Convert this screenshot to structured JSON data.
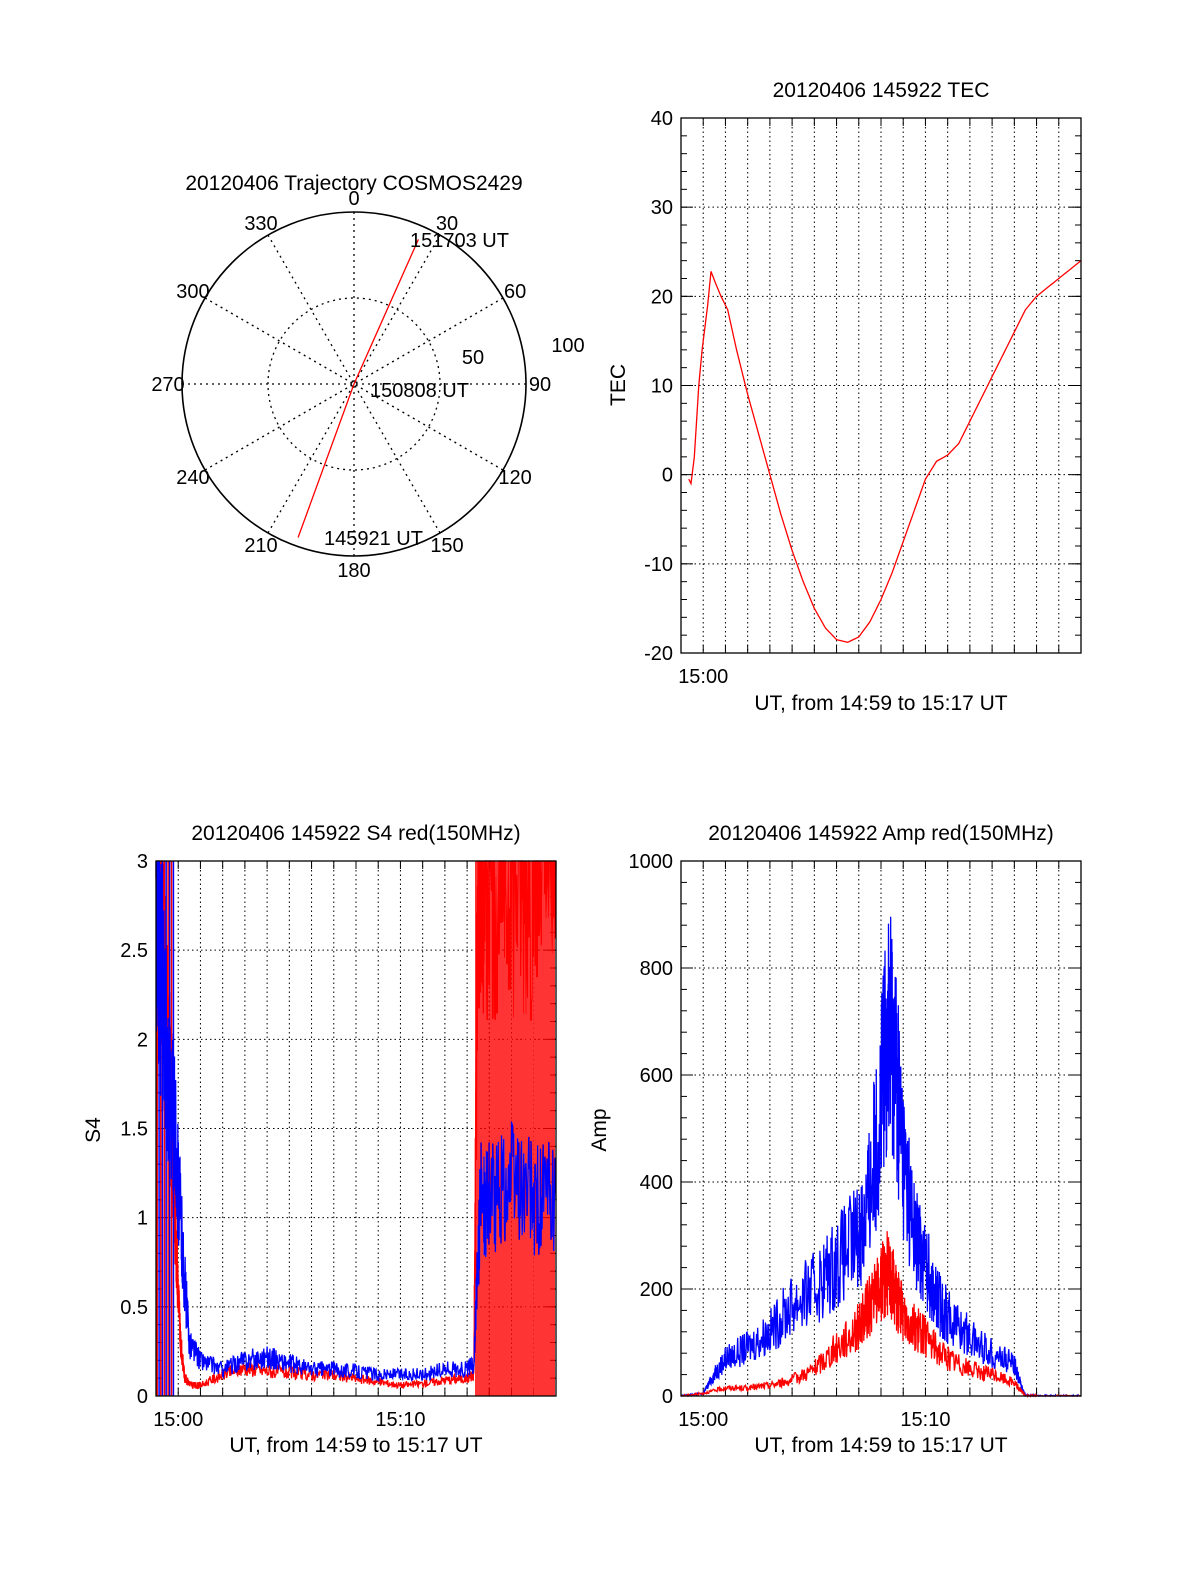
{
  "chart_data": [
    {
      "type": "polar",
      "title": "20120406 Trajectory COSMOS2429",
      "angle_labels": [
        "0",
        "30",
        "60",
        "90",
        "120",
        "150",
        "180",
        "210",
        "240",
        "270",
        "300",
        "330"
      ],
      "radius_labels": [
        "50",
        "100"
      ],
      "rmax": 100,
      "trajectory_points": [
        {
          "az": 200,
          "r": 95,
          "label": "145921 UT"
        },
        {
          "az": 90,
          "r": 0,
          "label": "150808 UT"
        },
        {
          "az": 24,
          "r": 92,
          "label": "151703 UT"
        }
      ],
      "series_color": "#ff0000"
    },
    {
      "type": "line",
      "title": "20120406 145922 TEC",
      "xlabel": "UT, from 14:59 to 15:17 UT",
      "ylabel": "TEC",
      "xlim": [
        0,
        18
      ],
      "ylim": [
        -20,
        40
      ],
      "yticks": [
        "-20",
        "-10",
        "0",
        "10",
        "20",
        "30",
        "40"
      ],
      "xticks": [
        {
          "x": 1,
          "label": "15:00"
        }
      ],
      "grid": true,
      "series": [
        {
          "color": "#ff0000",
          "x": [
            0.35,
            0.45,
            0.6,
            0.8,
            0.95,
            1.2,
            1.35,
            1.55,
            1.8,
            2.1,
            2.5,
            3.0,
            3.5,
            4.0,
            4.5,
            5.0,
            5.5,
            6.0,
            6.5,
            7.0,
            7.5,
            8.0,
            8.5,
            9.0,
            9.5,
            10.0,
            10.5,
            11.0,
            11.5,
            12.0,
            12.5,
            13.0,
            13.5,
            14.0,
            14.5,
            15.0,
            15.5,
            16.0,
            16.5,
            17.0,
            17.5,
            18.0
          ],
          "y": [
            -0.5,
            -1.0,
            2.0,
            10.0,
            14.0,
            19.0,
            22.8,
            21.5,
            20.0,
            18.5,
            14.0,
            9.0,
            4.5,
            0.0,
            -4.5,
            -8.5,
            -12.0,
            -15.0,
            -17.2,
            -18.5,
            -18.8,
            -18.2,
            -16.5,
            -14.0,
            -11.0,
            -7.5,
            -4.0,
            -0.5,
            1.5,
            2.2,
            3.5,
            6.0,
            8.5,
            11.0,
            13.5,
            16.0,
            18.5,
            20.0,
            21.0,
            22.0,
            23.0,
            24.0
          ]
        }
      ]
    },
    {
      "type": "line",
      "title": "20120406 145922 S4 red(150MHz)",
      "xlabel": "UT, from 14:59 to 15:17 UT",
      "ylabel": "S4",
      "xlim": [
        0,
        18
      ],
      "ylim": [
        0,
        3
      ],
      "yticks": [
        "0",
        "0.5",
        "1",
        "1.5",
        "2",
        "2.5",
        "3"
      ],
      "xticks": [
        {
          "x": 1,
          "label": "15:00"
        },
        {
          "x": 11,
          "label": "15:10"
        }
      ],
      "grid": true,
      "series": [
        {
          "color": "#ff0000",
          "x": [
            0.0,
            0.3,
            0.6,
            0.9,
            1.1,
            1.3,
            1.6,
            2.0,
            3.0,
            4.0,
            5.0,
            6.0,
            7.0,
            8.0,
            9.0,
            10.0,
            11.0,
            12.0,
            13.0,
            14.0,
            14.3,
            14.5,
            15.0,
            16.0,
            17.0,
            18.0
          ],
          "y": [
            3.0,
            2.5,
            1.8,
            0.9,
            0.3,
            0.1,
            0.06,
            0.06,
            0.12,
            0.16,
            0.14,
            0.13,
            0.12,
            0.12,
            0.1,
            0.08,
            0.06,
            0.07,
            0.09,
            0.1,
            0.12,
            3.0,
            3.0,
            3.0,
            3.0,
            3.0
          ]
        },
        {
          "color": "#0000ff",
          "x": [
            0.0,
            0.3,
            0.6,
            0.9,
            1.2,
            1.5,
            2.0,
            3.0,
            4.0,
            5.0,
            6.0,
            7.0,
            8.0,
            9.0,
            10.0,
            11.0,
            12.0,
            13.0,
            14.0,
            14.3,
            14.6,
            15.0,
            16.0,
            17.0,
            18.0
          ],
          "y": [
            2.8,
            2.2,
            1.8,
            1.4,
            0.8,
            0.3,
            0.2,
            0.15,
            0.2,
            0.22,
            0.18,
            0.15,
            0.15,
            0.14,
            0.12,
            0.12,
            0.12,
            0.15,
            0.15,
            0.18,
            1.1,
            1.1,
            1.2,
            1.1,
            1.1
          ]
        }
      ]
    },
    {
      "type": "line",
      "title": "20120406 145922 Amp red(150MHz)",
      "xlabel": "UT, from 14:59 to 15:17 UT",
      "ylabel": "Amp",
      "xlim": [
        0,
        18
      ],
      "ylim": [
        0,
        1000
      ],
      "yticks": [
        "0",
        "200",
        "400",
        "600",
        "800",
        "1000"
      ],
      "xticks": [
        {
          "x": 1,
          "label": "15:00"
        },
        {
          "x": 11,
          "label": "15:10"
        }
      ],
      "grid": true,
      "series": [
        {
          "color": "#0000ff",
          "x": [
            0.0,
            1.0,
            1.5,
            2.0,
            3.0,
            4.0,
            5.0,
            6.0,
            7.0,
            8.0,
            8.5,
            9.0,
            9.3,
            9.6,
            10.0,
            10.5,
            11.0,
            11.5,
            12.0,
            13.0,
            14.0,
            15.0,
            15.3,
            15.5,
            16.0,
            17.0,
            18.0
          ],
          "y": [
            0,
            5,
            40,
            70,
            90,
            120,
            170,
            200,
            250,
            300,
            380,
            550,
            700,
            650,
            450,
            300,
            250,
            180,
            150,
            110,
            80,
            60,
            20,
            0,
            0,
            0,
            0
          ]
        },
        {
          "color": "#ff0000",
          "x": [
            0.0,
            1.0,
            2.0,
            3.0,
            4.0,
            5.0,
            6.0,
            7.0,
            8.0,
            8.5,
            9.0,
            9.3,
            9.6,
            10.0,
            10.5,
            11.0,
            12.0,
            13.0,
            14.0,
            15.0,
            15.3,
            15.5,
            16.0,
            18.0
          ],
          "y": [
            0,
            5,
            15,
            15,
            20,
            30,
            50,
            90,
            130,
            170,
            210,
            230,
            200,
            150,
            130,
            110,
            70,
            50,
            40,
            25,
            10,
            0,
            0,
            0
          ]
        }
      ]
    }
  ]
}
